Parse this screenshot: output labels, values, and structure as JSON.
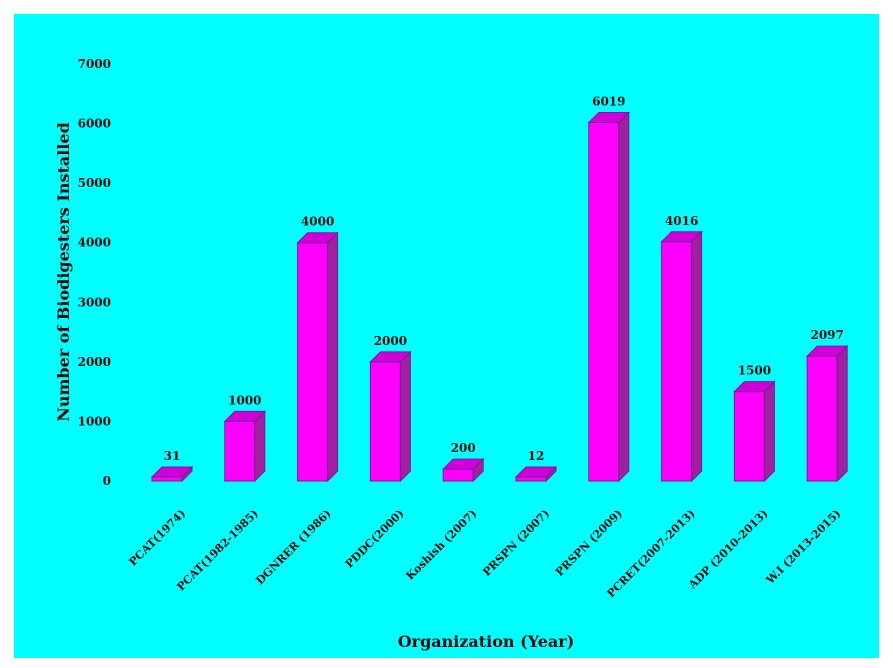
{
  "chart_data": {
    "type": "bar",
    "categories": [
      "PCAT(1974)",
      "PCAT(1982-1985)",
      "DGNRER (1986)",
      "PDDC(2000)",
      "Koshish (2007)",
      "PRSPN (2007)",
      "PRSPN (2009)",
      "PCRET(2007-2013)",
      "ADP (2010-2013)",
      "W.I (2013-2015)"
    ],
    "values": [
      31,
      1000,
      4000,
      2000,
      200,
      12,
      6019,
      4016,
      1500,
      2097
    ],
    "value_labels": [
      "31",
      "1000",
      "4000",
      "2000",
      "200",
      "12",
      "6019",
      "4016",
      "1500",
      "2097"
    ],
    "yticks": [
      0,
      1000,
      2000,
      3000,
      4000,
      5000,
      6000,
      7000
    ],
    "ylim": [
      0,
      7000
    ],
    "xlabel": "Organization  (Year)",
    "ylabel": "Number  of Biodigesters Installed",
    "title": "",
    "grid": false,
    "legend": "none",
    "colors": {
      "background": "#00ffff",
      "bar_front": "#ff00ff",
      "bar_side": "#a020a0",
      "bar_top": "#d000d8",
      "bar_outline": "#7a1a9a",
      "text": "#0a0a0a"
    }
  }
}
